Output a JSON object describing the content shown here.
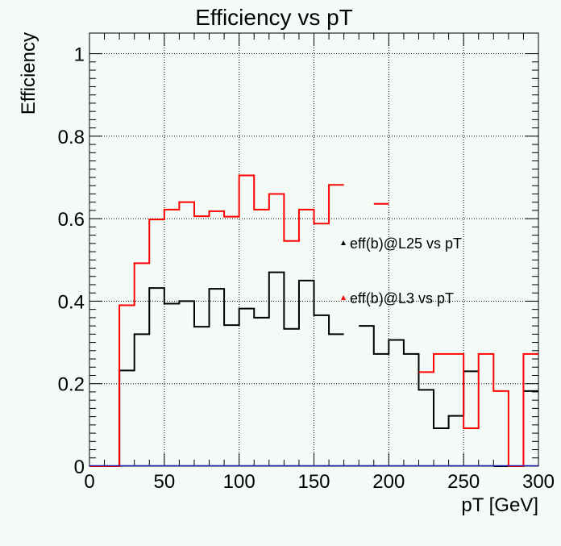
{
  "chart_data": {
    "type": "line",
    "title": "Efficiency vs pT",
    "xlabel": "pT [GeV]",
    "ylabel": "Efficiency",
    "xlim": [
      0,
      300
    ],
    "ylim": [
      0,
      1.05
    ],
    "grid": true,
    "x_ticks": [
      0,
      50,
      100,
      150,
      200,
      250,
      300
    ],
    "y_ticks": [
      0,
      0.2,
      0.4,
      0.6,
      0.8,
      1
    ],
    "x_tick_labels": [
      "0",
      "50",
      "100",
      "150",
      "200",
      "250",
      "300"
    ],
    "y_tick_labels": [
      "0",
      "0.2",
      "0.4",
      "0.6",
      "0.8",
      "1"
    ],
    "bin_edges": [
      0,
      10,
      20,
      30,
      40,
      50,
      60,
      70,
      80,
      90,
      100,
      110,
      120,
      130,
      140,
      150,
      160,
      170,
      180,
      190,
      200,
      210,
      220,
      230,
      240,
      250,
      260,
      270,
      280,
      290,
      300
    ],
    "series": [
      {
        "name": "eff(b)@L25 vs pT",
        "marker": "triangle",
        "color": "#000000",
        "values": [
          0,
          0,
          0.232,
          0.32,
          0.432,
          0.394,
          0.4,
          0.338,
          0.43,
          0.342,
          0.382,
          0.36,
          0.47,
          0.333,
          0.45,
          0.366,
          0.32,
          null,
          0.34,
          0.272,
          0.306,
          0.272,
          0.185,
          0.092,
          0.122,
          0.23,
          null,
          0,
          null,
          0.182
        ]
      },
      {
        "name": "eff(b)@L3 vs pT",
        "marker": "triangle",
        "color": "#ff0000",
        "values": [
          0,
          0,
          0.39,
          0.492,
          0.598,
          0.622,
          0.64,
          0.606,
          0.618,
          0.605,
          0.705,
          0.622,
          0.66,
          0.546,
          0.622,
          0.588,
          0.682,
          null,
          null,
          0.636,
          null,
          null,
          0.228,
          0.272,
          0.272,
          0.092,
          0.272,
          0.182,
          0,
          0.272
        ]
      }
    ],
    "legend_placement": "right-middle"
  }
}
